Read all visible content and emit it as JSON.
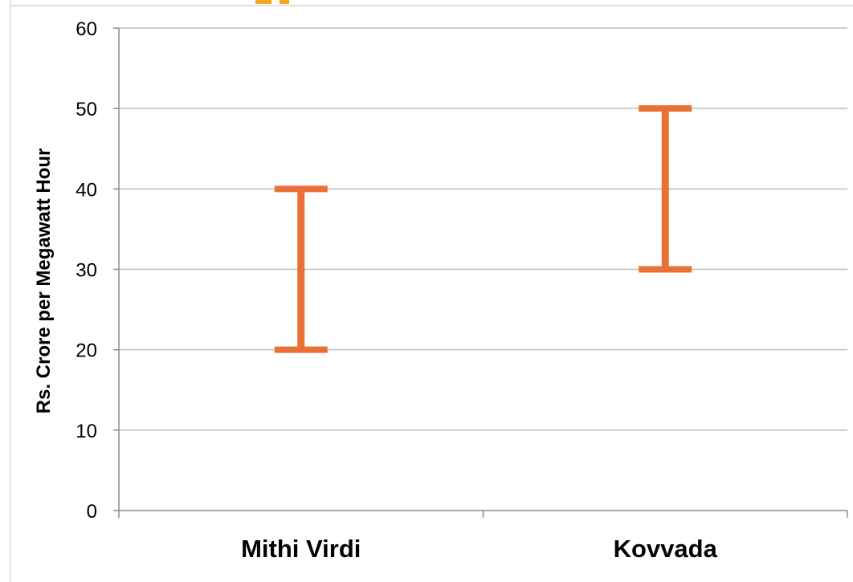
{
  "chart_data": {
    "type": "range",
    "title": "",
    "xlabel": "",
    "ylabel": "Rs. Crore per Megawatt Hour",
    "ylim": [
      0,
      60
    ],
    "yticks": [
      0,
      10,
      20,
      30,
      40,
      50,
      60
    ],
    "categories": [
      "Mithi Virdi",
      "Kovvada"
    ],
    "series": [
      {
        "low": [
          20,
          30
        ],
        "high": [
          40,
          50
        ]
      }
    ],
    "grid": true,
    "legend": "none",
    "colors": {
      "range_bar": "#EB7035",
      "gridline": "#BFBFBF",
      "axis": "#8C8C8C",
      "title_fragment": "#F5A623"
    }
  }
}
